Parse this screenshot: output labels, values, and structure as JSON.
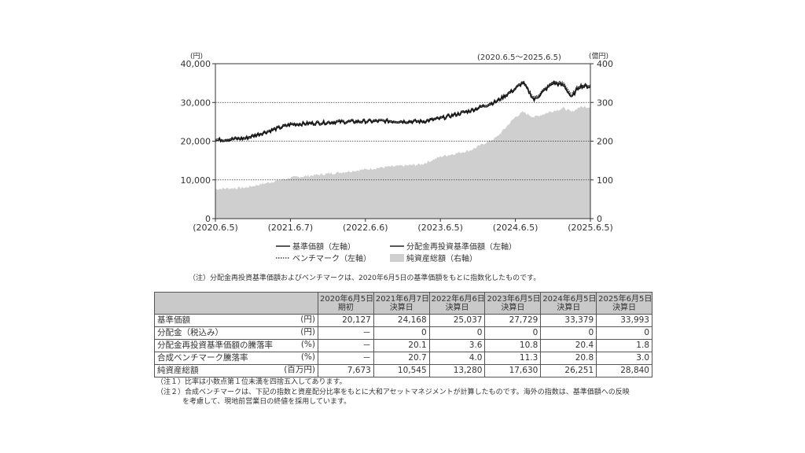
{
  "chart_data": {
    "type": "line",
    "period_label": "(2020.6.5～2025.6.5)",
    "left_unit": "(円)",
    "right_unit": "(億円)",
    "left_ticks": [
      "40,000",
      "30,000",
      "20,000",
      "10,000",
      "0"
    ],
    "right_ticks": [
      "400",
      "300",
      "200",
      "100",
      "0"
    ],
    "ylim_left": [
      0,
      40000
    ],
    "ylim_right": [
      0,
      400
    ],
    "x_ticks": [
      "(2020.6.5)",
      "(2021.6.7)",
      "(2022.6.6)",
      "(2023.6.5)",
      "(2024.6.5)",
      "(2025.6.5)"
    ],
    "x": [
      0,
      0.08,
      0.2,
      0.32,
      0.45,
      0.55,
      0.6,
      0.68,
      0.75,
      0.8,
      0.82,
      0.85,
      0.9,
      0.93,
      0.95,
      0.97,
      1.0
    ],
    "grid": "dotted horizontal",
    "series": [
      {
        "name": "基準価額（左軸）",
        "axis": "left",
        "style": "solid",
        "values": [
          20127,
          20600,
          24168,
          24800,
          25037,
          24900,
          25700,
          27729,
          30100,
          33379,
          35000,
          30500,
          34900,
          34200,
          31100,
          34000,
          33993
        ]
      },
      {
        "name": "分配金再投資基準価額（左軸）",
        "axis": "left",
        "style": "solid",
        "values": [
          20127,
          20600,
          24168,
          24800,
          25037,
          24900,
          25700,
          27729,
          30100,
          33379,
          35000,
          30500,
          34900,
          34200,
          31100,
          34000,
          33993
        ]
      },
      {
        "name": "ベンチマーク（左軸）",
        "axis": "left",
        "style": "dotted",
        "values": [
          20127,
          20500,
          24300,
          24900,
          25100,
          25000,
          25900,
          28000,
          30500,
          33800,
          35500,
          31200,
          35400,
          35000,
          32000,
          34600,
          34500
        ]
      },
      {
        "name": "純資産総額（右軸）",
        "axis": "right",
        "style": "area",
        "values": [
          76.7,
          80,
          105.5,
          118,
          132.8,
          140,
          160,
          176.3,
          210,
          262.5,
          275,
          262,
          278,
          285,
          275,
          288,
          288.4
        ]
      }
    ]
  },
  "note_chart": "（注）分配金再投資基準価額およびベンチマークは、2020年6月5日の基準価額をもとに指数化したものです。",
  "table": {
    "headers": [
      {
        "date": "2020年6月5日",
        "sub": "期初"
      },
      {
        "date": "2021年6月7日",
        "sub": "決算日"
      },
      {
        "date": "2022年6月6日",
        "sub": "決算日"
      },
      {
        "date": "2023年6月5日",
        "sub": "決算日"
      },
      {
        "date": "2024年6月5日",
        "sub": "決算日"
      },
      {
        "date": "2025年6月5日",
        "sub": "決算日"
      }
    ],
    "rows": [
      {
        "label": "基準価額",
        "unit": "(円)",
        "values": [
          "20,127",
          "24,168",
          "25,037",
          "27,729",
          "33,379",
          "33,993"
        ]
      },
      {
        "label": "分配金（税込み）",
        "unit": "(円)",
        "values": [
          "－",
          "0",
          "0",
          "0",
          "0",
          "0"
        ]
      },
      {
        "label": "分配金再投資基準価額の騰落率",
        "unit": "(%)",
        "values": [
          "－",
          "20.1",
          "3.6",
          "10.8",
          "20.4",
          "1.8"
        ]
      },
      {
        "label": "合成ベンチマーク騰落率",
        "unit": "(%)",
        "values": [
          "－",
          "20.7",
          "4.0",
          "11.3",
          "20.8",
          "3.0"
        ]
      },
      {
        "label": "純資産総額",
        "unit": "(百万円)",
        "values": [
          "7,673",
          "10,545",
          "13,280",
          "17,630",
          "26,251",
          "28,840"
        ]
      }
    ]
  },
  "notes": {
    "note1": "（注１）比率は小数点第１位未満を四捨五入してあります。",
    "note2a": "（注２）合成ベンチマークは、下記の指数と資産配分比率をもとに大和アセットマネジメントが計算したものです。海外の指数は、基準価額への反映",
    "note2b": "を考慮して、現地前営業日の終値を採用しています。"
  },
  "colors": {
    "area": "#cfcfcf",
    "line": "#222222",
    "header_bg": "#c9c9c9"
  }
}
